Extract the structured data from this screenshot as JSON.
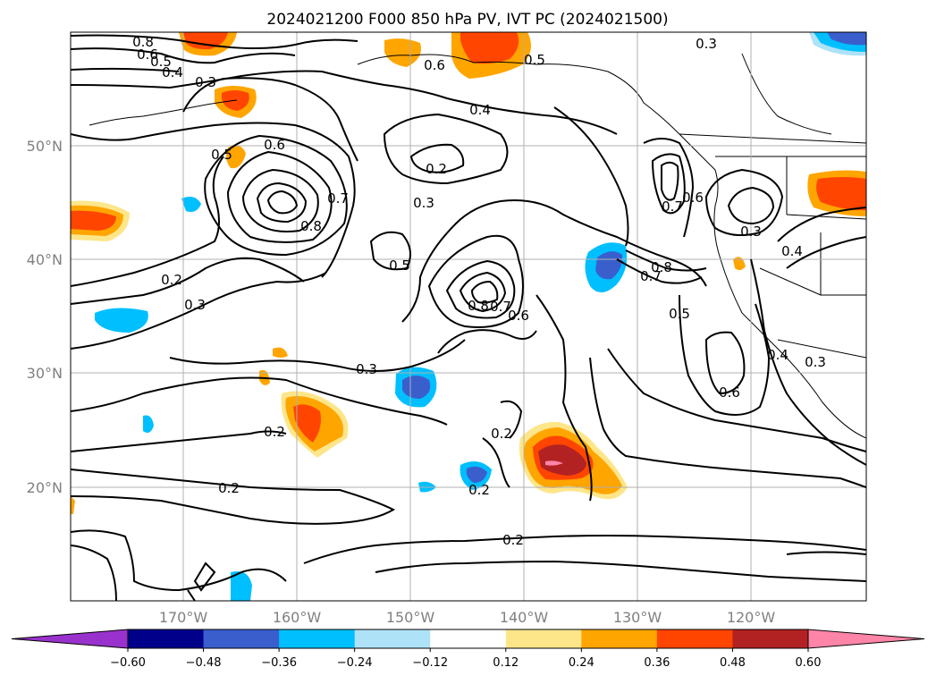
{
  "title": "2024021200 F000 850 hPa PV, IVT PC (2024021500)",
  "lat_labels": [
    "50°N",
    "40°N",
    "30°N",
    "20°N"
  ],
  "lon_labels": [
    "170°W",
    "160°W",
    "150°W",
    "140°W",
    "130°W",
    "120°W"
  ],
  "colorbar": {
    "ticks": [
      "−0.60",
      "−0.48",
      "−0.36",
      "−0.24",
      "−0.12",
      "0.12",
      "0.24",
      "0.36",
      "0.48",
      "0.60"
    ],
    "colors": [
      "#9932cc",
      "#00008b",
      "#3a5fcd",
      "#00bfff",
      "#aee2f7",
      "#ffffff",
      "#fde68a",
      "#ffa500",
      "#ff4500",
      "#b22222",
      "#ff85a8"
    ]
  },
  "contour_labels": [
    "0.8",
    "0.6",
    "0.5",
    "0.4",
    "0.3",
    "0.6",
    "0.5",
    "0.3",
    "0.4",
    "0.5",
    "0.6",
    "0.2",
    "0.3",
    "0.7",
    "0.8",
    "0.5",
    "0.8",
    "0.7",
    "0.6",
    "0.7",
    "0.6",
    "0.8",
    "0.7",
    "0.5",
    "0.3",
    "0.4",
    "0.4",
    "0.3",
    "0.6",
    "0.2",
    "0.3",
    "0.3",
    "0.2",
    "0.2",
    "0.2",
    "0.2",
    "0.2"
  ]
}
